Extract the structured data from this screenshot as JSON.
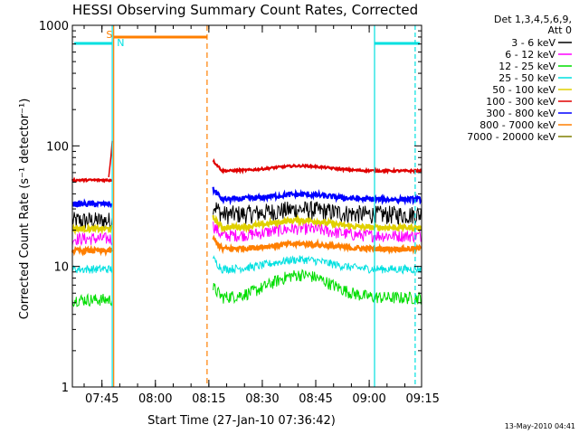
{
  "chart_data": {
    "type": "line",
    "title": "HESSI Observing Summary Count Rates, Corrected",
    "xlabel": "Start Time (27-Jan-10 07:36:42)",
    "ylabel": "Corrected Count Rate (s⁻¹ detector⁻¹)",
    "yscale": "log",
    "ylim": [
      1,
      1000
    ],
    "xlim_minutes": [
      0,
      98
    ],
    "x_tick_labels": [
      "07:45",
      "08:00",
      "08:15",
      "08:30",
      "08:45",
      "09:00",
      "09:15"
    ],
    "x_tick_minutes": [
      8.3,
      23.3,
      38.3,
      53.3,
      68.3,
      83.3,
      98.3
    ],
    "y_tick_labels": [
      "1",
      "10",
      "100",
      "1000"
    ],
    "y_tick_values": [
      1,
      10,
      100,
      1000
    ],
    "grid": false,
    "legend_placement": "right-outside",
    "legend": {
      "header1": "Det 1,3,4,5,6,9,",
      "header2": "Att 0",
      "entries": [
        {
          "label": "3 - 6 keV",
          "color": "#000000"
        },
        {
          "label": "6 - 12 keV",
          "color": "#ff00ff"
        },
        {
          "label": "12 - 25 keV",
          "color": "#00dd00"
        },
        {
          "label": "25 - 50 keV",
          "color": "#00e0e0"
        },
        {
          "label": "50 - 100 keV",
          "color": "#e0d000"
        },
        {
          "label": "100 - 300 keV",
          "color": "#e00000"
        },
        {
          "label": "300 - 800 keV",
          "color": "#0000ff"
        },
        {
          "label": "800 - 7000 keV",
          "color": "#ff7f00"
        },
        {
          "label": "7000 - 20000 keV",
          "color": "#7f7f00"
        }
      ]
    },
    "segments": [
      {
        "name": "before-gap",
        "x_range_minutes": [
          0,
          11.2
        ]
      },
      {
        "name": "after-gap",
        "x_range_minutes": [
          39.5,
          98
        ]
      }
    ],
    "series": [
      {
        "name": "3 - 6 keV",
        "color": "#000000",
        "approx_level_before": 24,
        "approx_level_after": 27
      },
      {
        "name": "6 - 12 keV",
        "color": "#ff00ff",
        "approx_level_before": 17,
        "approx_level_after": 18
      },
      {
        "name": "12 - 25 keV",
        "color": "#00dd00",
        "approx_level_before": 5.3,
        "approx_level_after": 5.5
      },
      {
        "name": "25 - 50 keV",
        "color": "#00e0e0",
        "approx_level_before": 9.5,
        "approx_level_after": 9.5
      },
      {
        "name": "50 - 100 keV",
        "color": "#e0d000",
        "approx_level_before": 20.5,
        "approx_level_after": 21
      },
      {
        "name": "100 - 300 keV",
        "color": "#e00000",
        "approx_level_before": 52,
        "approx_level_after": 62
      },
      {
        "name": "300 - 800 keV",
        "color": "#0000ff",
        "approx_level_before": 33,
        "approx_level_after": 36
      },
      {
        "name": "800 - 7000 keV",
        "color": "#ff7f00",
        "approx_level_before": 13.5,
        "approx_level_after": 14
      }
    ],
    "annotations": [
      {
        "text": "S",
        "color": "#ff7f00"
      },
      {
        "text": "N",
        "color": "#00e0e0"
      }
    ],
    "timestamp": "13-May-2010 04:41"
  }
}
